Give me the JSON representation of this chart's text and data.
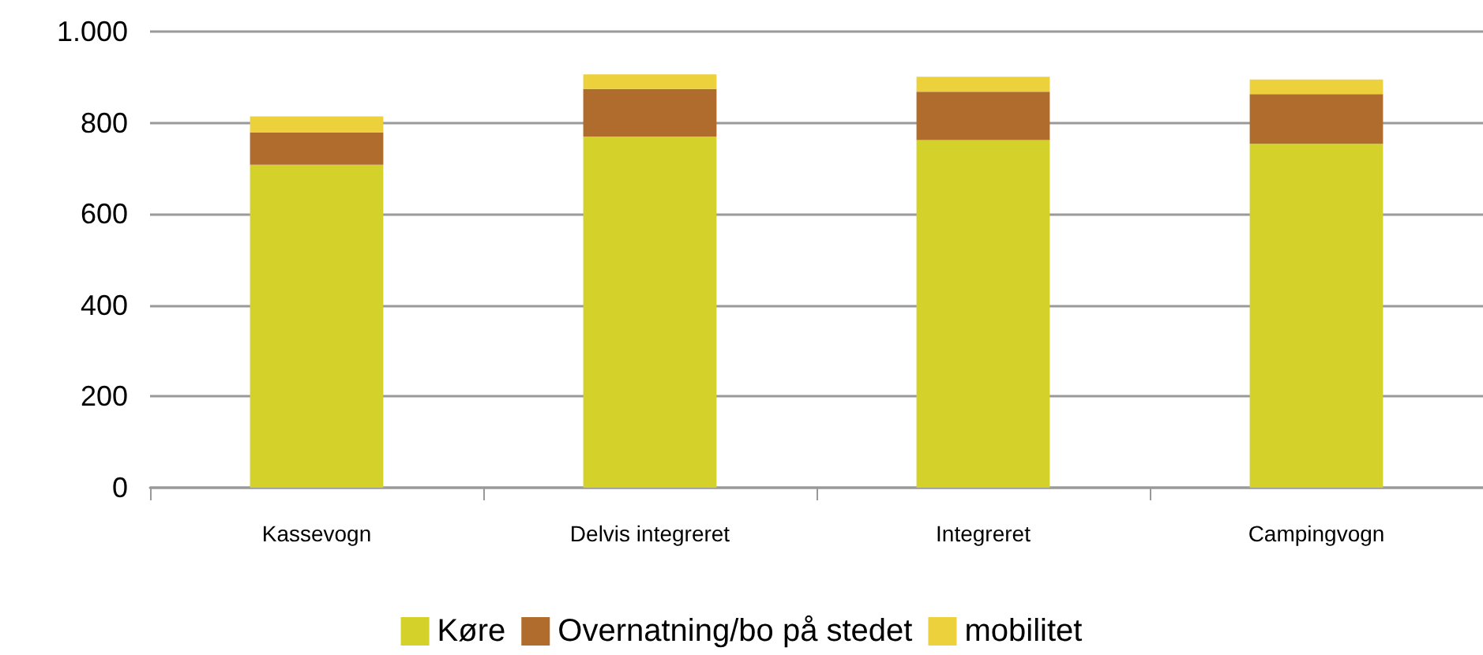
{
  "chart_data": {
    "type": "bar",
    "stacked": true,
    "categories": [
      "Kassevogn",
      "Delvis integreret",
      "Integreret",
      "Campingvogn"
    ],
    "series": [
      {
        "name": "Køre",
        "color": "#d4d12a",
        "values": [
          708,
          770,
          762,
          754
        ]
      },
      {
        "name": "Overnatning/bo på stedet",
        "color": "#b06c2c",
        "values": [
          71,
          104,
          106,
          109
        ]
      },
      {
        "name": "mobilitet",
        "color": "#ecd03c",
        "values": [
          35,
          32,
          33,
          32
        ]
      }
    ],
    "ylim": [
      0,
      1000
    ],
    "yticks": [
      0,
      200,
      400,
      600,
      800,
      {
        "value": 1000,
        "label": "1.000"
      }
    ],
    "grid": "y",
    "legend": "bottom"
  }
}
